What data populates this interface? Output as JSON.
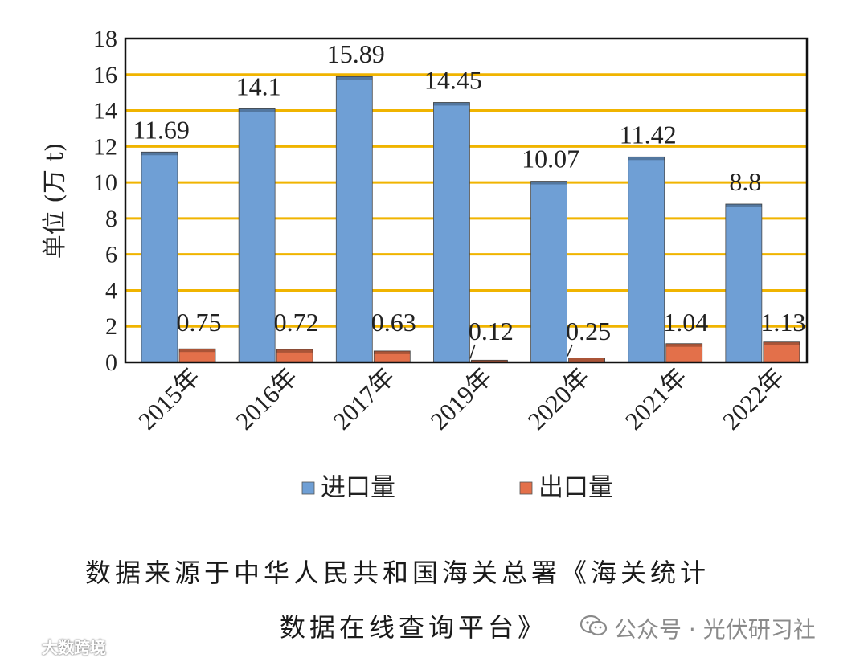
{
  "chart_data": {
    "type": "bar",
    "categories": [
      "2015年",
      "2016年",
      "2017年",
      "2019年",
      "2020年",
      "2021年",
      "2022年"
    ],
    "series": [
      {
        "name": "进口量",
        "values": [
          11.69,
          14.1,
          15.89,
          14.45,
          10.07,
          11.42,
          8.8
        ],
        "color": "#6f9fd5"
      },
      {
        "name": "出口量",
        "values": [
          0.75,
          0.72,
          0.63,
          0.12,
          0.25,
          1.04,
          1.13
        ],
        "color": "#e3704a"
      }
    ],
    "data_labels": {
      "进口量": [
        "11.69",
        "14.1",
        "15.89",
        "14.45",
        "10.07",
        "11.42",
        "8.8"
      ],
      "出口量": [
        "0.75",
        "0.72",
        "0.63",
        "0.12",
        "0.25",
        "1.04",
        "1.13"
      ]
    },
    "ylabel": "单位 (万 t)",
    "ylim": [
      0,
      18
    ],
    "yticks": [
      0,
      2,
      4,
      6,
      8,
      10,
      12,
      14,
      16,
      18
    ],
    "grid": true,
    "grid_color": "#f0b400",
    "legend": "bottom"
  },
  "caption": {
    "line1": "数据来源于中华人民共和国海关总署《海关统计",
    "line2": "数据在线查询平台》"
  },
  "watermark": {
    "right": "公众号 · 光伏研习社",
    "left": "大数跨境",
    "right_icon": "wechat-icon",
    "left_icon": "logo-icon"
  }
}
